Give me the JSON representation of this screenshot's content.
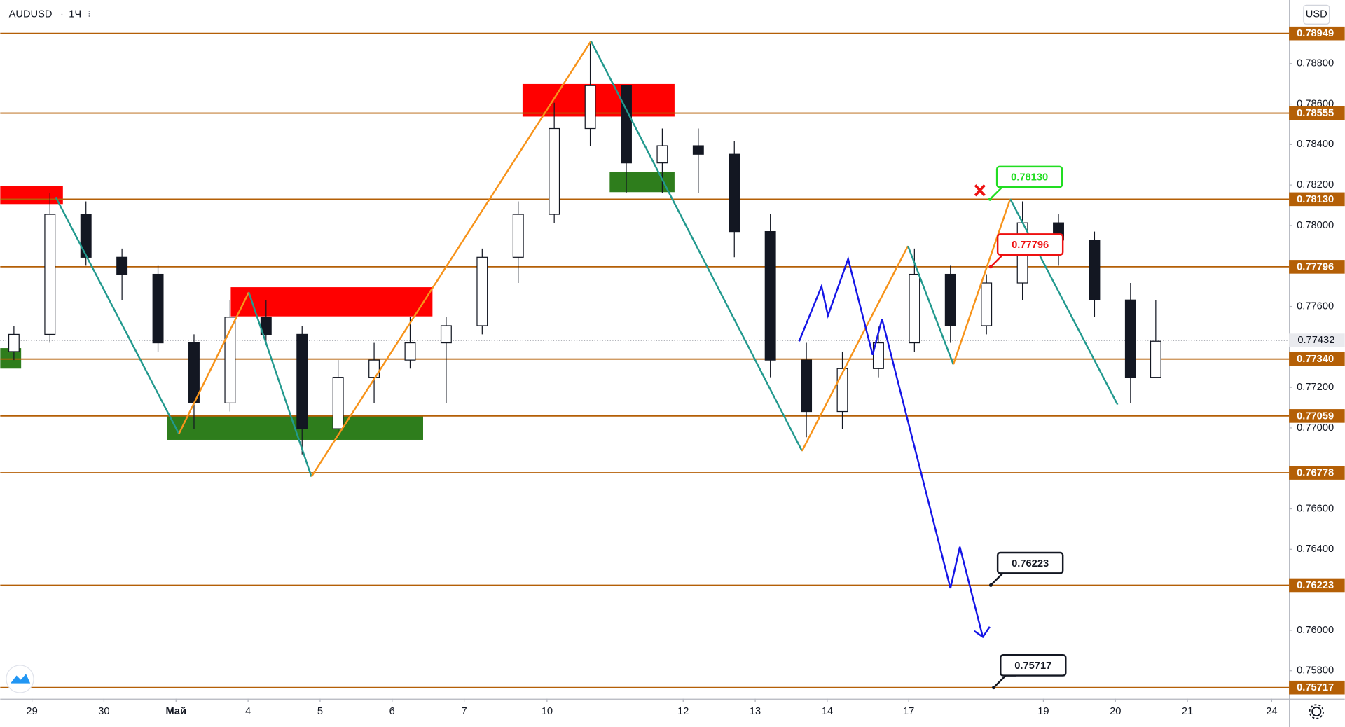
{
  "chart_data": {
    "type": "candlestick",
    "symbol": "AUDUSD",
    "interval": "1Ч",
    "currency": "USD",
    "xlim": [
      -0.44,
      17.45
    ],
    "ylim": [
      0.75662,
      0.79114
    ],
    "grid": false,
    "xticks": [
      {
        "value": 0,
        "label": "29"
      },
      {
        "value": 1,
        "label": "30"
      },
      {
        "value": 2,
        "label": "Май"
      },
      {
        "value": 3,
        "label": "4"
      },
      {
        "value": 4,
        "label": "5"
      },
      {
        "value": 5,
        "label": "6"
      },
      {
        "value": 6,
        "label": "7"
      },
      {
        "value": 7.15,
        "label": "10"
      },
      {
        "value": 9.04,
        "label": "12"
      },
      {
        "value": 10.04,
        "label": "13"
      },
      {
        "value": 11.04,
        "label": "14"
      },
      {
        "value": 12.17,
        "label": "17"
      },
      {
        "value": 14.04,
        "label": "19"
      },
      {
        "value": 15.04,
        "label": "20"
      },
      {
        "value": 16.04,
        "label": "21"
      },
      {
        "value": 17.21,
        "label": "24"
      }
    ],
    "yticks": [
      {
        "value": 0.788,
        "label": "0.78800"
      },
      {
        "value": 0.786,
        "label": "0.78600"
      },
      {
        "value": 0.784,
        "label": "0.78400"
      },
      {
        "value": 0.782,
        "label": "0.78200"
      },
      {
        "value": 0.78,
        "label": "0.78000"
      },
      {
        "value": 0.776,
        "label": "0.77600"
      },
      {
        "value": 0.772,
        "label": "0.77200"
      },
      {
        "value": 0.77,
        "label": "0.77000"
      },
      {
        "value": 0.766,
        "label": "0.76600"
      },
      {
        "value": 0.764,
        "label": "0.76400"
      },
      {
        "value": 0.76,
        "label": "0.76000"
      },
      {
        "value": 0.758,
        "label": "0.75800"
      }
    ],
    "candles": {
      "up_color": "#ffffff",
      "down_color": "#131722",
      "x": [
        -0.25,
        0.25,
        0.75,
        1.25,
        1.75,
        2.25,
        2.75,
        3.25,
        3.75,
        4.25,
        4.75,
        5.25,
        5.75,
        6.25,
        6.75,
        7.25,
        7.75,
        8.25,
        8.75,
        9.25,
        9.75,
        10.25,
        10.75,
        11.25,
        11.75,
        12.25,
        12.75,
        13.25,
        13.75,
        14.25,
        14.75,
        15.25,
        15.6
      ],
      "open": [
        0.77377,
        0.77462,
        0.78055,
        0.77843,
        0.77759,
        0.7742,
        0.77123,
        0.77547,
        0.77462,
        0.76996,
        0.7725,
        0.77335,
        0.7742,
        0.77505,
        0.77843,
        0.78055,
        0.78479,
        0.78691,
        0.78309,
        0.78394,
        0.78352,
        0.7797,
        0.77335,
        0.77081,
        0.77293,
        0.7742,
        0.77759,
        0.77505,
        0.77716,
        0.78013,
        0.77928,
        0.77632,
        0.7725
      ],
      "high": [
        0.77505,
        0.78161,
        0.78119,
        0.77886,
        0.77801,
        0.77462,
        0.77632,
        0.77632,
        0.77505,
        0.77335,
        0.7742,
        0.77547,
        0.77547,
        0.77886,
        0.78119,
        0.78606,
        0.78902,
        0.78691,
        0.78479,
        0.78479,
        0.78415,
        0.78055,
        0.7742,
        0.77377,
        0.77505,
        0.77886,
        0.77801,
        0.77759,
        0.78119,
        0.78055,
        0.7797,
        0.77716,
        0.77632
      ],
      "low": [
        0.77335,
        0.7742,
        0.77801,
        0.77632,
        0.77377,
        0.76996,
        0.77081,
        0.7742,
        0.76869,
        0.76954,
        0.77123,
        0.77293,
        0.77123,
        0.77462,
        0.77716,
        0.78013,
        0.78394,
        0.78161,
        0.78161,
        0.78161,
        0.77843,
        0.7725,
        0.76954,
        0.76996,
        0.7725,
        0.77377,
        0.7742,
        0.77462,
        0.77632,
        0.77801,
        0.77547,
        0.77123,
        0.7725
      ],
      "close": [
        0.77462,
        0.78055,
        0.77843,
        0.77759,
        0.7742,
        0.77123,
        0.77547,
        0.77462,
        0.76996,
        0.7725,
        0.77335,
        0.7742,
        0.77505,
        0.77843,
        0.78055,
        0.78479,
        0.78691,
        0.78309,
        0.78394,
        0.78352,
        0.7797,
        0.77335,
        0.77081,
        0.77293,
        0.7742,
        0.77759,
        0.77505,
        0.77716,
        0.78013,
        0.77928,
        0.77632,
        0.7725,
        0.77428
      ]
    },
    "last_price": 0.77432,
    "levels": {
      "color": "#b45f06",
      "values": [
        0.78949,
        0.78555,
        {
          "value": 0.7813,
          "label": "0.78130"
        },
        0.77796,
        {
          "value": 0.7734,
          "label": "0.77340"
        },
        0.77059,
        0.76778,
        0.76223,
        0.75717
      ]
    },
    "zones": [
      {
        "color": "#ff0000",
        "x": [
          -0.44,
          0.43
        ],
        "y": [
          0.78195,
          0.78106
        ]
      },
      {
        "color": "#2e7d1c",
        "x": [
          -0.44,
          -0.15
        ],
        "y": [
          0.77394,
          0.77293
        ]
      },
      {
        "color": "#ff0000",
        "x": [
          2.76,
          5.56
        ],
        "y": [
          0.77695,
          0.77551
        ]
      },
      {
        "color": "#2e7d1c",
        "x": [
          1.88,
          5.43
        ],
        "y": [
          0.77064,
          0.76941
        ]
      },
      {
        "color": "#ff0000",
        "x": [
          6.81,
          8.92
        ],
        "y": [
          0.78699,
          0.78538
        ]
      },
      {
        "color": "#2e7d1c",
        "x": [
          8.02,
          8.92
        ],
        "y": [
          0.78263,
          0.78165
        ]
      }
    ],
    "zigzag": {
      "up_color": "#f7931a",
      "down_color": "#22998e",
      "x": [
        0.33,
        2.04,
        3.01,
        3.88,
        7.76,
        10.69,
        12.16,
        12.79,
        13.58,
        15.07
      ],
      "values": [
        0.7814,
        0.76971,
        0.7767,
        0.76759,
        0.78911,
        0.76886,
        0.77899,
        0.77314,
        0.78131,
        0.77115
      ]
    },
    "forecast": {
      "color": "#1515e6",
      "x": [
        10.65,
        10.96,
        11.05,
        11.33,
        11.67,
        11.8,
        12.75,
        12.88,
        13.2
      ],
      "values": [
        0.77428,
        0.77699,
        0.77555,
        0.77835,
        0.77361,
        0.77538,
        0.76208,
        0.76412,
        0.75967
      ]
    },
    "annotations": [
      {
        "label": "0.78130",
        "value": 0.7813,
        "x": 13.3,
        "color": "#22dd22"
      },
      {
        "label": "0.77796",
        "value": 0.77796,
        "x": 13.31,
        "color": "#ee1111"
      },
      {
        "label": "0.76223",
        "value": 0.76223,
        "x": 13.31,
        "color": "#131722"
      },
      {
        "label": "0.75717",
        "value": 0.75717,
        "x": 13.35,
        "color": "#131722"
      }
    ]
  }
}
